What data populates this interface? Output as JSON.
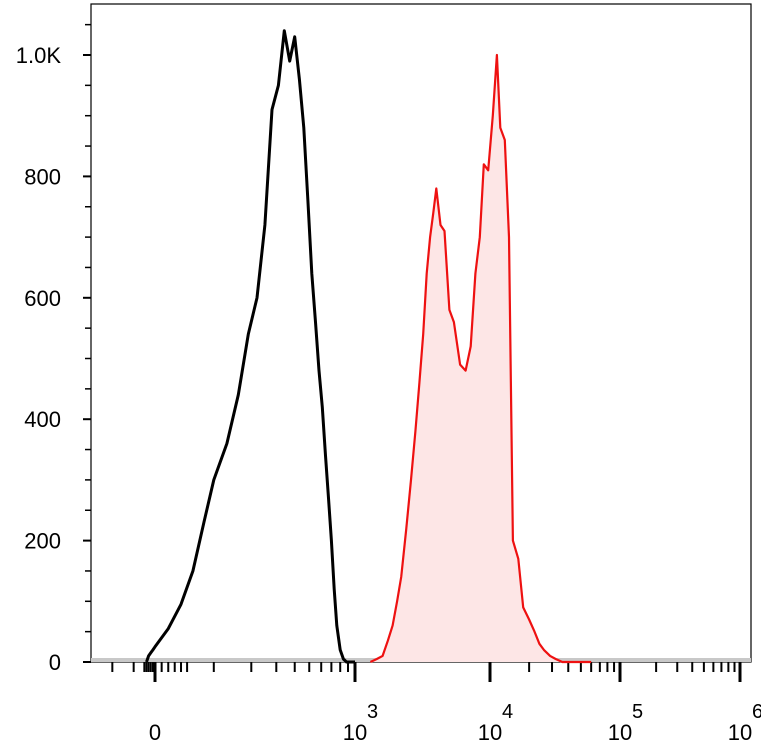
{
  "chart_data": {
    "type": "area",
    "title": "",
    "xlabel": "",
    "ylabel": "",
    "grid": false,
    "legend": "none",
    "x_scale": "biexponential",
    "xlim": [
      -300,
      1000000
    ],
    "ylim": [
      0,
      1060
    ],
    "y_ticks": [
      {
        "value": 0,
        "label": "0"
      },
      {
        "value": 200,
        "label": "200"
      },
      {
        "value": 400,
        "label": "400"
      },
      {
        "value": 600,
        "label": "600"
      },
      {
        "value": 800,
        "label": "800"
      },
      {
        "value": 1000,
        "label": "1.0K"
      }
    ],
    "x_ticks": [
      {
        "value": 0,
        "base": "0",
        "exp": ""
      },
      {
        "value": 1000,
        "base": "10",
        "exp": "3"
      },
      {
        "value": 10000,
        "base": "10",
        "exp": "4"
      },
      {
        "value": 100000,
        "base": "10",
        "exp": "5"
      },
      {
        "value": 1000000,
        "base": "10",
        "exp": "6"
      }
    ],
    "series": [
      {
        "color": "#000000",
        "fill": "none",
        "x": [
          -40,
          -30,
          -20,
          -10,
          0,
          20,
          40,
          60,
          80,
          100,
          130,
          160,
          190,
          220,
          250,
          280,
          310,
          340,
          370,
          400,
          430,
          460,
          490,
          520,
          550,
          580,
          610,
          640,
          670,
          700,
          730,
          760,
          800,
          840,
          880,
          920,
          960,
          1000
        ],
        "y": [
          0,
          10,
          15,
          20,
          25,
          55,
          95,
          150,
          230,
          300,
          360,
          440,
          540,
          600,
          720,
          910,
          950,
          1040,
          990,
          1030,
          960,
          880,
          760,
          640,
          560,
          480,
          420,
          340,
          270,
          200,
          120,
          60,
          20,
          5,
          0,
          0,
          0,
          0
        ]
      },
      {
        "color": "#ee1111",
        "fill": "#fde6e6",
        "x": [
          1300,
          1450,
          1600,
          1750,
          1900,
          2050,
          2200,
          2400,
          2600,
          2800,
          3000,
          3200,
          3400,
          3600,
          3800,
          4000,
          4300,
          4600,
          5000,
          5400,
          6000,
          6600,
          7200,
          7800,
          8400,
          9000,
          9700,
          10500,
          11300,
          12000,
          13000,
          14000,
          15000,
          16500,
          18000,
          20000,
          22000,
          24000,
          26000,
          29000,
          32000,
          36000,
          40000,
          45000,
          50000,
          55000,
          60000
        ],
        "y": [
          0,
          5,
          10,
          35,
          60,
          100,
          140,
          220,
          300,
          380,
          460,
          540,
          640,
          700,
          740,
          780,
          720,
          710,
          580,
          560,
          490,
          480,
          520,
          640,
          700,
          820,
          810,
          900,
          1000,
          880,
          860,
          700,
          200,
          170,
          90,
          70,
          50,
          30,
          20,
          10,
          5,
          0,
          0,
          0,
          0,
          0,
          0
        ]
      }
    ]
  }
}
